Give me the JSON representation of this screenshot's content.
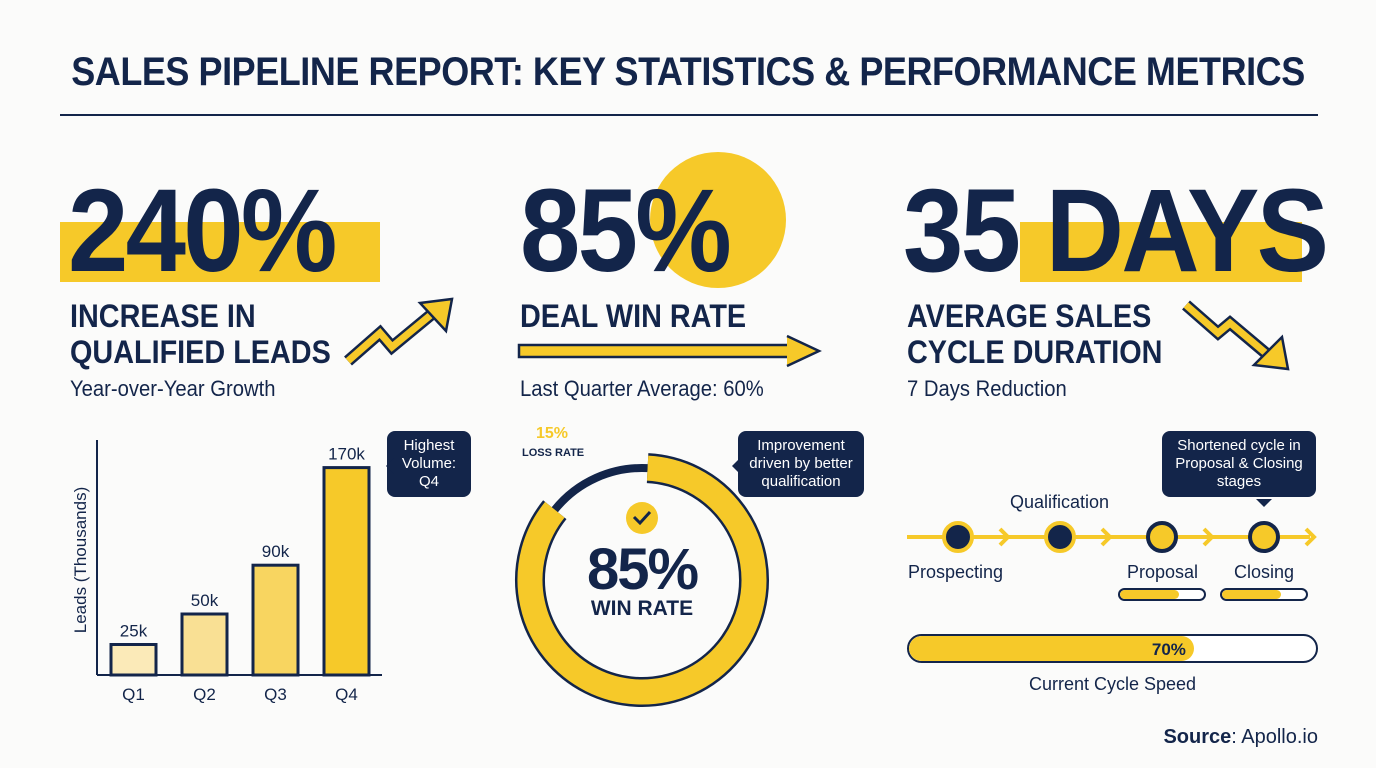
{
  "title": "SALES PIPELINE REPORT: KEY STATISTICS & PERFORMANCE METRICS",
  "colors": {
    "navy": "#13254a",
    "yellow": "#f6c929"
  },
  "stat1": {
    "value": "240%",
    "line1": "INCREASE IN",
    "line2": "QUALIFIED LEADS",
    "note": "Year-over-Year Growth",
    "icon": "trend-up-arrow-icon"
  },
  "stat2": {
    "value": "85%",
    "line1": "DEAL WIN RATE",
    "note": "Last Quarter Average: 60%",
    "icon": "right-arrow-icon"
  },
  "stat3": {
    "value_num": "35",
    "value_unit": "DAYS",
    "line1": "AVERAGE SALES",
    "line2": "CYCLE DURATION",
    "note": "7 Days Reduction",
    "icon": "trend-down-arrow-icon"
  },
  "chart_data": [
    {
      "type": "bar",
      "ylabel": "Leads (Thousands)",
      "categories": [
        "Q1",
        "Q2",
        "Q3",
        "Q4"
      ],
      "values": [
        25,
        50,
        90,
        170
      ],
      "data_labels": [
        "25k",
        "50k",
        "90k",
        "170k"
      ],
      "annotation": [
        "Highest",
        "Volume:",
        "Q4"
      ]
    },
    {
      "type": "pie",
      "style": "donut",
      "slices": [
        {
          "label": "WIN RATE",
          "value": 85,
          "text": "85%"
        },
        {
          "label": "LOSS RATE",
          "value": 15,
          "text": "15%"
        }
      ],
      "annotation": [
        "Improvement",
        "driven by better",
        "qualification"
      ]
    }
  ],
  "timeline": {
    "stages": [
      "Prospecting",
      "Qualification",
      "Proposal",
      "Closing"
    ],
    "callout": [
      "Shortened cycle in",
      "Proposal & Closing",
      "stages"
    ],
    "stage_progress": [
      0.7,
      0.7
    ]
  },
  "speed": {
    "value": 70,
    "text": "70%",
    "label": "Current Cycle Speed"
  },
  "source": {
    "label": "Source",
    "value": ": Apollo.io"
  }
}
